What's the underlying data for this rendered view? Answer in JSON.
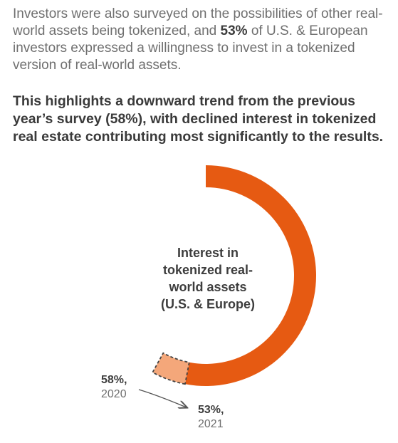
{
  "intro": {
    "part1": "Investors were also surveyed on the possibilities of other real-world assets being tokenized, and ",
    "emphasis": "53%",
    "part2": " of U.S. & European investors expressed a willingness to invest in a tokenized version of real-world assets."
  },
  "highlight": "This highlights a downward trend from the previous year’s survey (58%), with declined interest in tokenized real estate contributing most significantly to the results.",
  "chart_data": {
    "type": "pie",
    "center_label": [
      "Interest in",
      "tokenized real-",
      "world assets",
      "(U.S. & Europe)"
    ],
    "series": [
      {
        "name": "2021",
        "value": 53,
        "value_label": "53%,",
        "year_label": "2021"
      },
      {
        "name": "2020",
        "value": 58,
        "value_label": "58%,",
        "year_label": "2020"
      }
    ],
    "colors": {
      "current": "#E65A12",
      "difference": "#F4A77A",
      "dash": "#444444"
    }
  }
}
